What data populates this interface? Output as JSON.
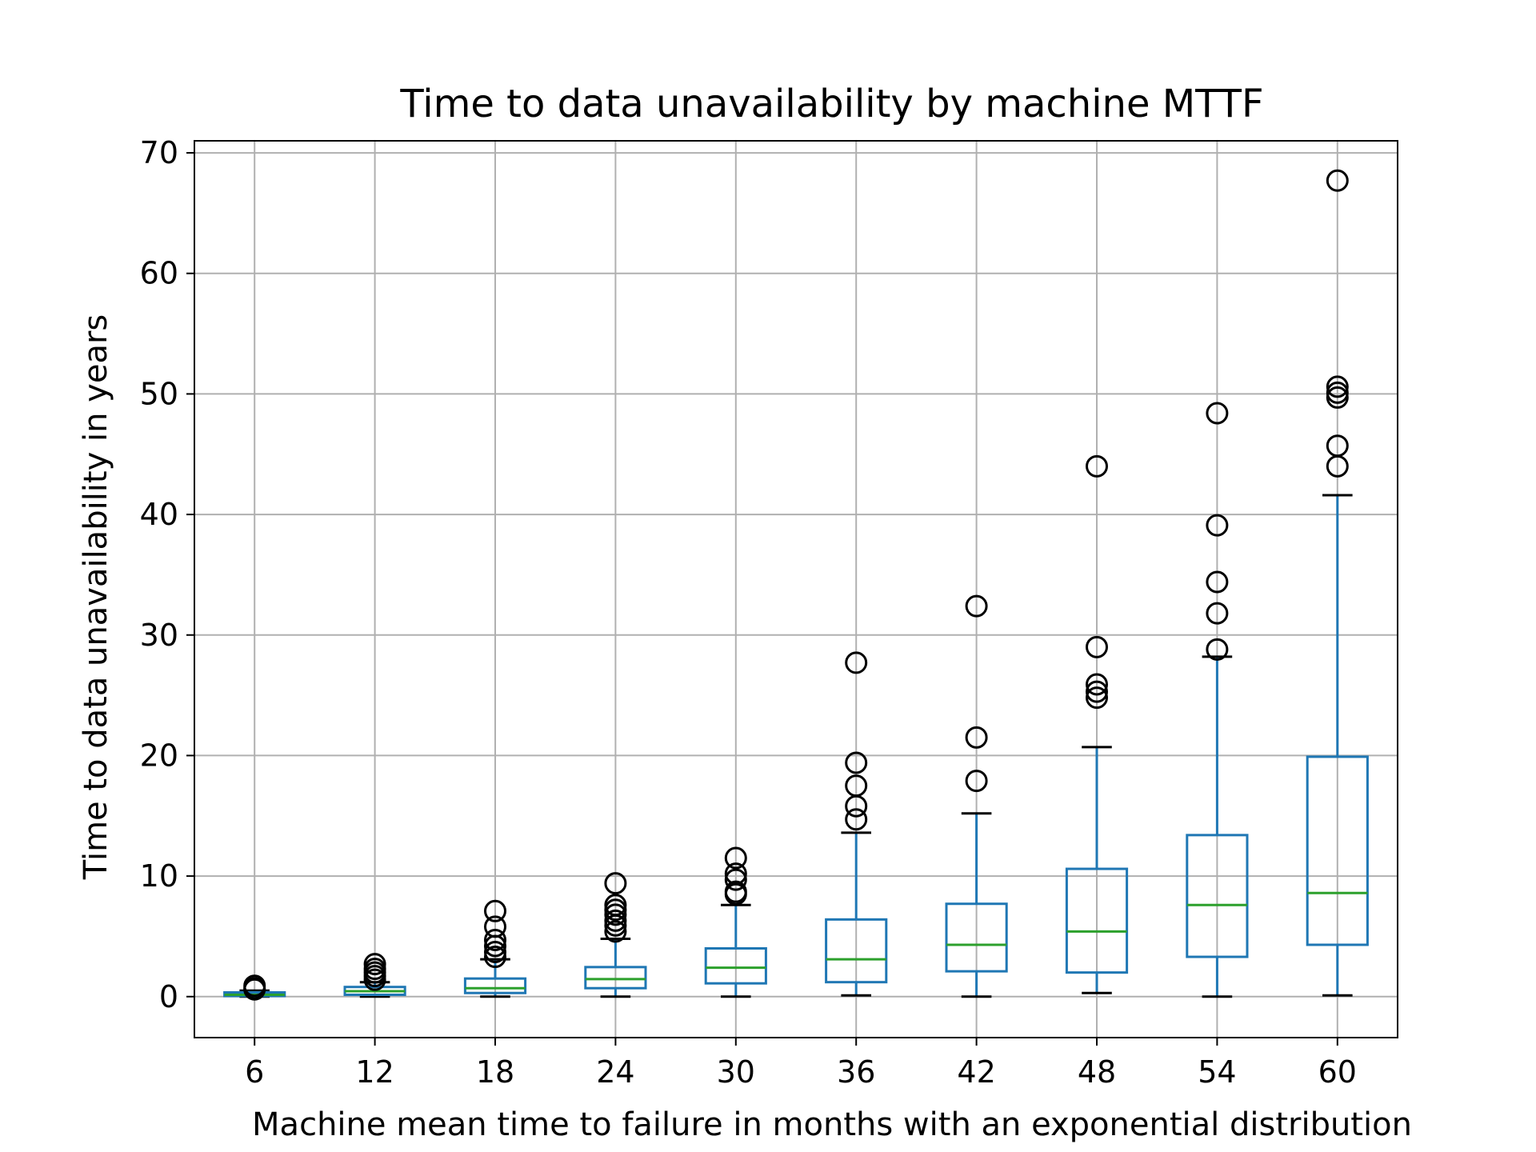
{
  "chart_data": {
    "type": "boxplot",
    "title": "Time to data unavailability by machine MTTF",
    "xlabel": "Machine mean time to failure in months with an exponential distribution",
    "ylabel": "Time to data unavailability in years",
    "ylim": [
      -3.4,
      71
    ],
    "yticks": [
      0,
      10,
      20,
      30,
      40,
      50,
      60,
      70
    ],
    "grid": true,
    "colors": {
      "box": "#1f77b4",
      "median": "#2ca02c",
      "whisker": "#1f77b4",
      "cap": "#000000",
      "flier": "#000000",
      "grid": "#b0b0b0"
    },
    "categories": [
      "6",
      "12",
      "18",
      "24",
      "30",
      "36",
      "42",
      "48",
      "54",
      "60"
    ],
    "boxes": [
      {
        "label": "6",
        "whislo": 0.0,
        "q1": 0.05,
        "med": 0.15,
        "q3": 0.35,
        "whishi": 0.5,
        "fliers": [
          0.6,
          0.7,
          0.9
        ]
      },
      {
        "label": "12",
        "whislo": 0.0,
        "q1": 0.15,
        "med": 0.45,
        "q3": 0.8,
        "whishi": 1.2,
        "fliers": [
          1.4,
          1.7,
          2.0,
          2.3,
          2.7
        ]
      },
      {
        "label": "18",
        "whislo": 0.0,
        "q1": 0.3,
        "med": 0.7,
        "q3": 1.5,
        "whishi": 3.1,
        "fliers": [
          3.3,
          3.7,
          4.2,
          4.7,
          5.8,
          7.1
        ]
      },
      {
        "label": "24",
        "whislo": 0.0,
        "q1": 0.7,
        "med": 1.45,
        "q3": 2.45,
        "whishi": 4.8,
        "fliers": [
          5.4,
          5.9,
          6.3,
          6.8,
          7.2,
          7.6,
          9.4
        ]
      },
      {
        "label": "30",
        "whislo": 0.0,
        "q1": 1.1,
        "med": 2.4,
        "q3": 4.0,
        "whishi": 7.6,
        "fliers": [
          8.5,
          8.7,
          9.7,
          10.2,
          11.5
        ]
      },
      {
        "label": "36",
        "whislo": 0.1,
        "q1": 1.2,
        "med": 3.1,
        "q3": 6.4,
        "whishi": 13.6,
        "fliers": [
          14.7,
          15.8,
          17.5,
          19.4,
          27.7
        ]
      },
      {
        "label": "42",
        "whislo": 0.0,
        "q1": 2.1,
        "med": 4.3,
        "q3": 7.7,
        "whishi": 15.2,
        "fliers": [
          17.9,
          21.5,
          32.4
        ]
      },
      {
        "label": "48",
        "whislo": 0.3,
        "q1": 2.0,
        "med": 5.4,
        "q3": 10.6,
        "whishi": 20.7,
        "fliers": [
          24.8,
          25.3,
          25.9,
          29.0,
          44.0
        ]
      },
      {
        "label": "54",
        "whislo": 0.0,
        "q1": 3.3,
        "med": 7.6,
        "q3": 13.4,
        "whishi": 28.2,
        "fliers": [
          28.8,
          31.8,
          34.4,
          39.1,
          48.4
        ]
      },
      {
        "label": "60",
        "whislo": 0.1,
        "q1": 4.3,
        "med": 8.6,
        "q3": 19.9,
        "whishi": 41.6,
        "fliers": [
          44.0,
          45.7,
          49.7,
          50.1,
          50.6,
          67.7
        ]
      }
    ]
  }
}
